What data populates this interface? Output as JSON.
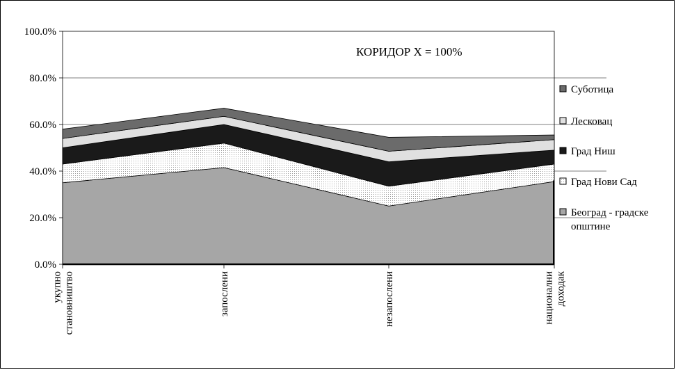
{
  "chart_data": {
    "type": "area",
    "stacked": true,
    "title": "",
    "xlabel": "",
    "ylabel": "",
    "ylim": [
      0,
      100
    ],
    "y_ticks": [
      "0.0%",
      "20.0%",
      "40.0%",
      "60.0%",
      "80.0%",
      "100.0%"
    ],
    "grid": "horizontal",
    "legend_position": "right",
    "categories": [
      [
        "укупно",
        "становништво"
      ],
      [
        "запослени"
      ],
      [
        "незапослени"
      ],
      [
        "национални",
        "доходак"
      ]
    ],
    "annotation": "КОРИДОР X = 100%",
    "series": [
      {
        "name": "Београд - градске општине",
        "legend_lines": [
          "Београд - градске",
          "општине"
        ],
        "values": [
          35.0,
          41.5,
          25.0,
          35.5
        ],
        "fill": "#a6a6a6",
        "pattern": "solid"
      },
      {
        "name": "Град Нови Сад",
        "legend_lines": [
          "Град Нови Сад"
        ],
        "values": [
          8.0,
          10.5,
          8.5,
          7.5
        ],
        "fill": "#ffffff",
        "pattern": "dots"
      },
      {
        "name": "Град Ниш",
        "legend_lines": [
          "Град Ниш"
        ],
        "values": [
          7.0,
          8.0,
          10.5,
          6.0
        ],
        "fill": "#1a1a1a",
        "pattern": "solid"
      },
      {
        "name": "Лесковац",
        "legend_lines": [
          "Лесковац"
        ],
        "values": [
          4.0,
          3.5,
          4.5,
          4.5
        ],
        "fill": "#e0e0e0",
        "pattern": "solid"
      },
      {
        "name": "Суботица",
        "legend_lines": [
          "Суботица"
        ],
        "values": [
          4.0,
          3.5,
          6.0,
          2.0
        ],
        "fill": "#6b6b6b",
        "pattern": "solid"
      }
    ],
    "legend_order": [
      "Суботица",
      "Лесковац",
      "Град Ниш",
      "Град Нови Сад",
      "Београд - градске општине"
    ]
  }
}
